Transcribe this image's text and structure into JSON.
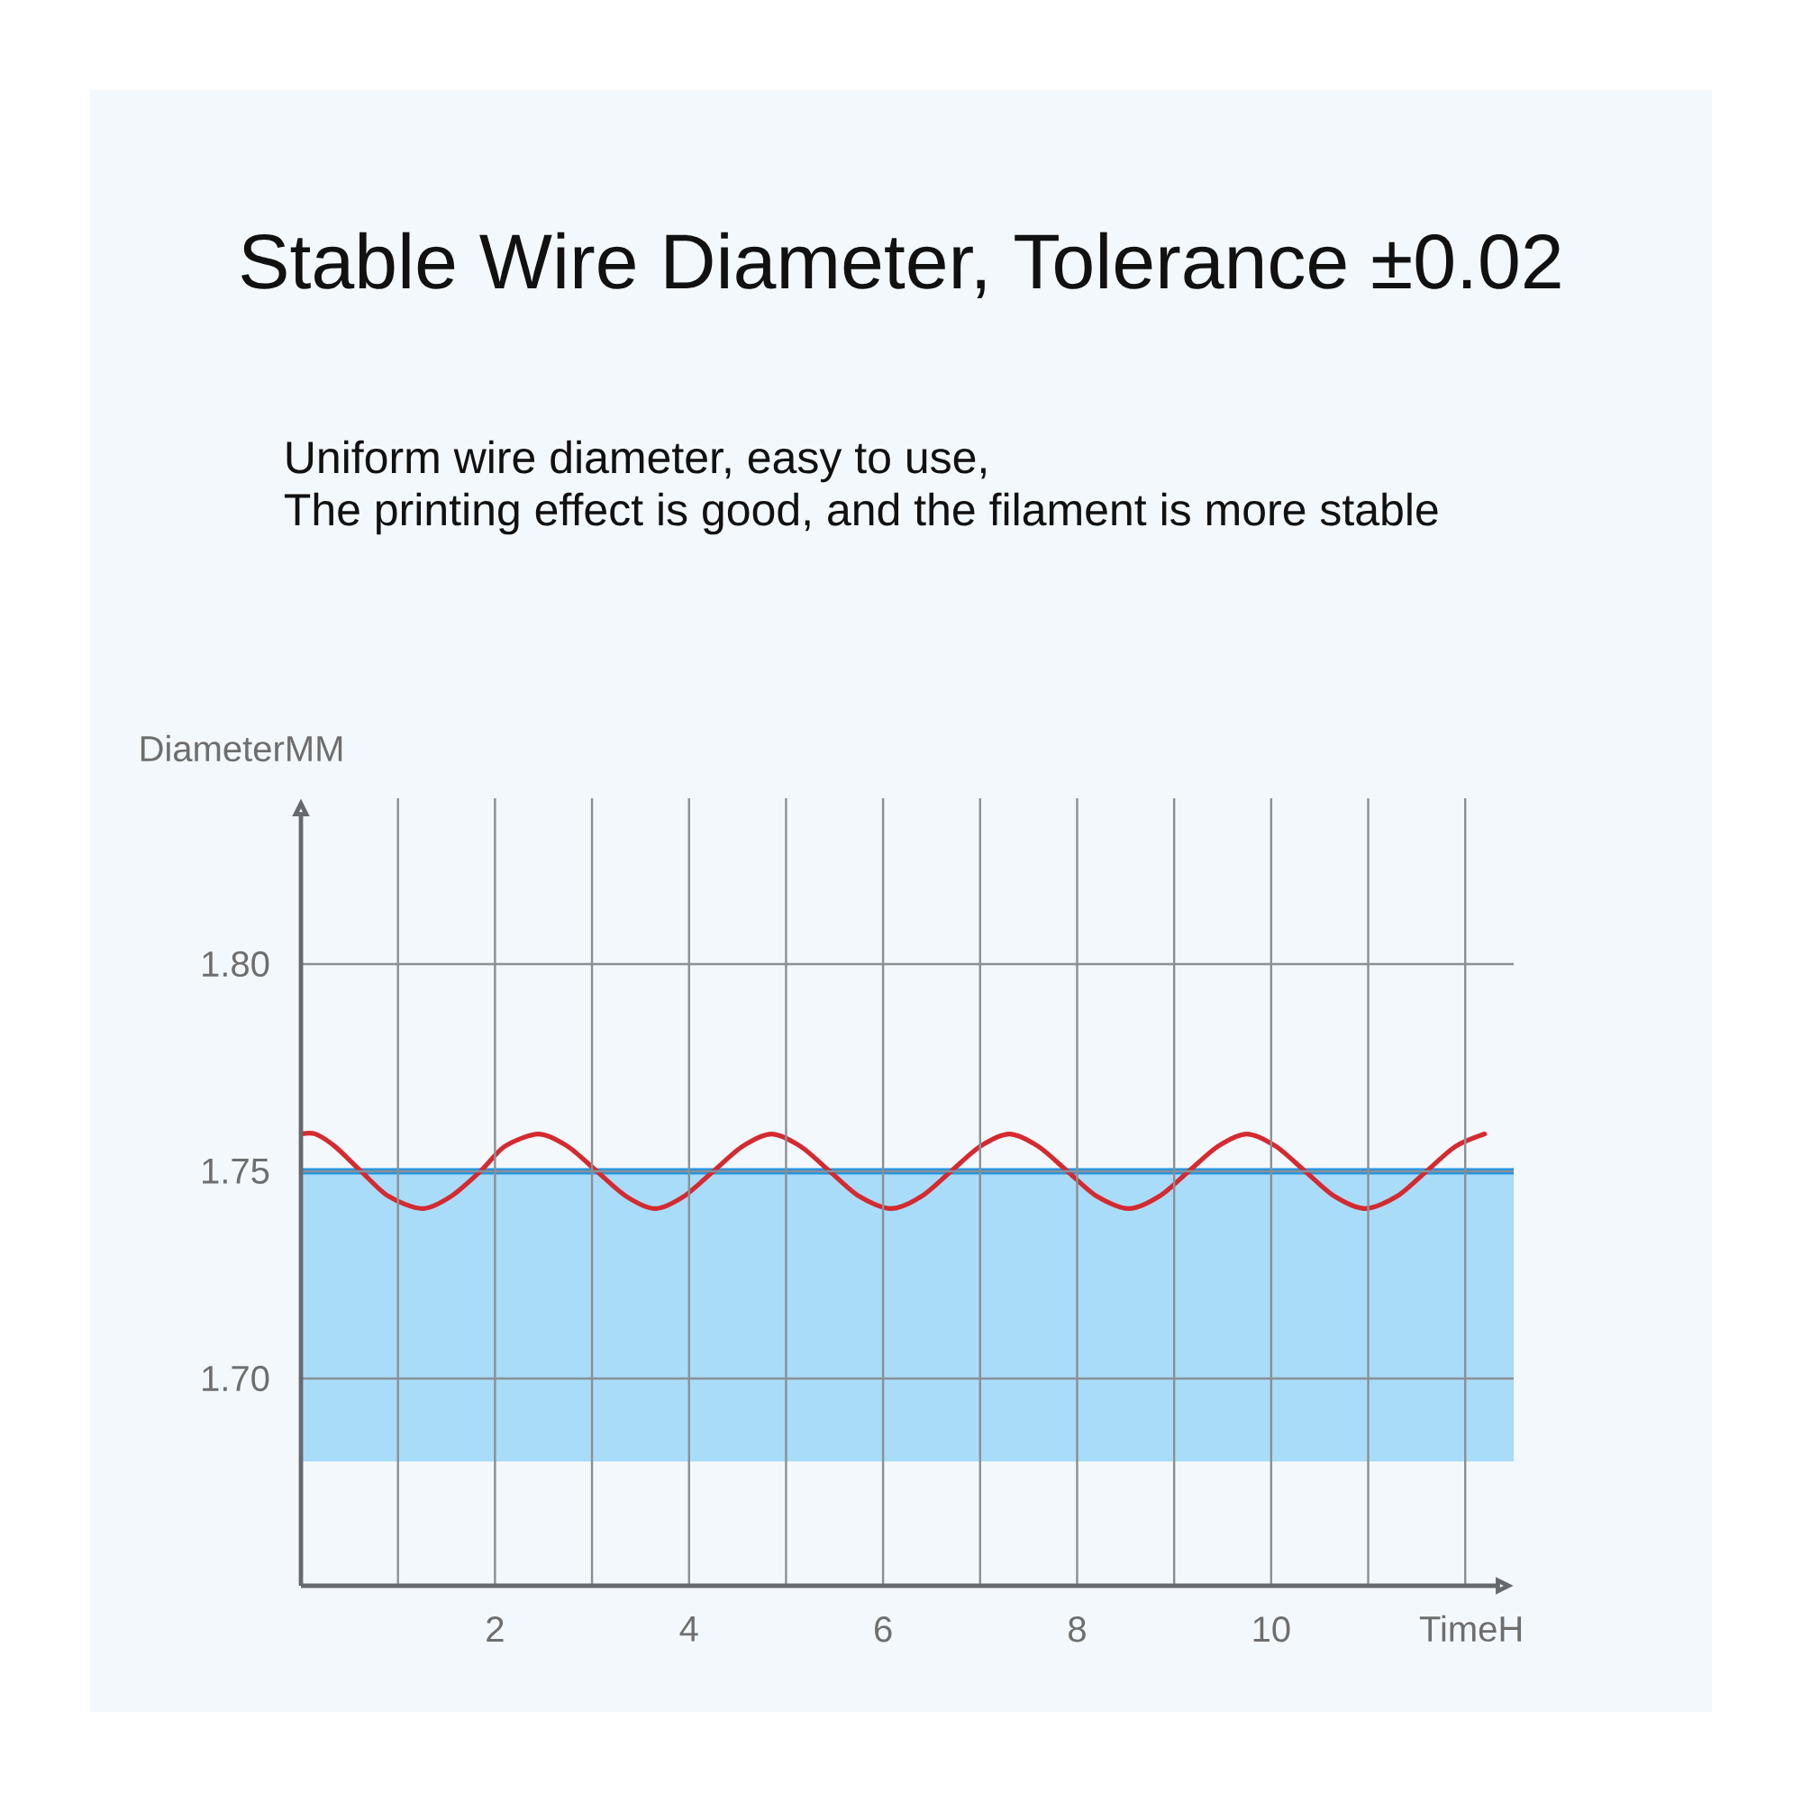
{
  "chart_data": {
    "type": "line",
    "title": "Stable Wire Diameter, Tolerance ±0.02",
    "subtitle": "Uniform wire diameter, easy to use,",
    "annotations": [
      "The printing effect is good, and the filament is more stable"
    ],
    "xlabel": "TimeH",
    "ylabel": "DiameterMM",
    "x": [
      0,
      0.15,
      0.35,
      0.62,
      0.9,
      1.25,
      1.55,
      1.85,
      2.1,
      2.45,
      2.75,
      3.05,
      3.35,
      3.65,
      3.95,
      4.25,
      4.55,
      4.85,
      5.15,
      5.45,
      5.75,
      6.08,
      6.4,
      6.7,
      7.0,
      7.3,
      7.6,
      7.9,
      8.2,
      8.53,
      8.85,
      9.15,
      9.45,
      9.75,
      10.05,
      10.35,
      10.65,
      10.97,
      11.3,
      11.6,
      11.9,
      12.2
    ],
    "series": [
      {
        "color": "#d42a30",
        "values": [
          1.759,
          1.759,
          1.756,
          1.75,
          1.744,
          1.741,
          1.744,
          1.75,
          1.756,
          1.759,
          1.756,
          1.75,
          1.744,
          1.741,
          1.744,
          1.75,
          1.756,
          1.759,
          1.756,
          1.75,
          1.744,
          1.741,
          1.744,
          1.75,
          1.756,
          1.759,
          1.756,
          1.75,
          1.744,
          1.741,
          1.744,
          1.75,
          1.756,
          1.759,
          1.756,
          1.75,
          1.744,
          1.741,
          1.744,
          1.75,
          1.756,
          1.759
        ]
      }
    ],
    "xlim": [
      0,
      12.5
    ],
    "ylim": [
      1.65,
      1.84
    ],
    "xticks": [
      {
        "value": 1,
        "label": null
      },
      2,
      {
        "value": 3,
        "label": null
      },
      4,
      {
        "value": 5,
        "label": null
      },
      6,
      {
        "value": 7,
        "label": null
      },
      8,
      {
        "value": 9,
        "label": null
      },
      10,
      {
        "value": 11,
        "label": null
      },
      {
        "value": 12,
        "label": null
      }
    ],
    "yticks": [
      {
        "value": 1.7,
        "label": "1.70"
      },
      {
        "value": 1.75,
        "label": "1.75"
      },
      {
        "value": 1.8,
        "label": "1.80"
      }
    ],
    "grid": true,
    "ref_lines": [
      {
        "axis": "y",
        "value": 1.75,
        "color": "#2096e2"
      }
    ],
    "bands": [
      {
        "axis": "y",
        "from": 1.68,
        "to": 1.75,
        "color": "#a9dcf8"
      }
    ]
  }
}
